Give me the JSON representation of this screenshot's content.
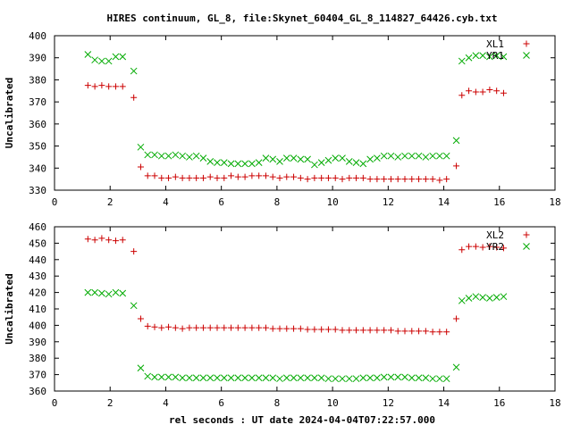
{
  "title": "HIRES continuum, GL_8, file:Skynet_60404_GL_8_114827_64426.cyb.txt",
  "xlabel": "rel seconds : UT date 2024-04-04T07:22:57.000",
  "chart_data": [
    {
      "type": "scatter",
      "ylabel": "Uncalibrated",
      "xlim": [
        0,
        18
      ],
      "ylim": [
        330,
        400
      ],
      "xticks": [
        0,
        2,
        4,
        6,
        8,
        10,
        12,
        14,
        16,
        18
      ],
      "yticks": [
        330,
        340,
        350,
        360,
        370,
        380,
        390,
        400
      ],
      "legend_position": "top-right",
      "series": [
        {
          "name": "XL1",
          "marker": "plus",
          "color": "#cc0000",
          "points": [
            [
              1.2,
              377.5
            ],
            [
              1.45,
              377
            ],
            [
              1.7,
              377.5
            ],
            [
              1.95,
              377
            ],
            [
              2.2,
              377
            ],
            [
              2.45,
              377
            ],
            [
              2.85,
              372
            ],
            [
              3.1,
              340.5
            ],
            [
              3.35,
              336.5
            ],
            [
              3.6,
              336.5
            ],
            [
              3.85,
              335.5
            ],
            [
              4.1,
              335.5
            ],
            [
              4.35,
              336
            ],
            [
              4.6,
              335.5
            ],
            [
              4.85,
              335.5
            ],
            [
              5.1,
              335.5
            ],
            [
              5.35,
              335.5
            ],
            [
              5.6,
              336
            ],
            [
              5.85,
              335.5
            ],
            [
              6.1,
              335.5
            ],
            [
              6.35,
              336.5
            ],
            [
              6.6,
              336
            ],
            [
              6.85,
              336
            ],
            [
              7.1,
              336.5
            ],
            [
              7.35,
              336.5
            ],
            [
              7.6,
              336.5
            ],
            [
              7.85,
              336
            ],
            [
              8.1,
              335.5
            ],
            [
              8.35,
              336
            ],
            [
              8.6,
              336
            ],
            [
              8.85,
              335.5
            ],
            [
              9.1,
              335
            ],
            [
              9.35,
              335.5
            ],
            [
              9.6,
              335.5
            ],
            [
              9.85,
              335.5
            ],
            [
              10.1,
              335.5
            ],
            [
              10.35,
              335
            ],
            [
              10.6,
              335.5
            ],
            [
              10.85,
              335.5
            ],
            [
              11.1,
              335.5
            ],
            [
              11.35,
              335
            ],
            [
              11.6,
              335
            ],
            [
              11.85,
              335
            ],
            [
              12.1,
              335
            ],
            [
              12.35,
              335
            ],
            [
              12.6,
              335
            ],
            [
              12.85,
              335
            ],
            [
              13.1,
              335
            ],
            [
              13.35,
              335
            ],
            [
              13.6,
              335
            ],
            [
              13.85,
              334.5
            ],
            [
              14.1,
              335
            ],
            [
              14.45,
              341
            ],
            [
              14.65,
              373
            ],
            [
              14.9,
              375
            ],
            [
              15.15,
              374.5
            ],
            [
              15.4,
              374.5
            ],
            [
              15.65,
              375.5
            ],
            [
              15.9,
              375
            ],
            [
              16.15,
              374
            ]
          ]
        },
        {
          "name": "YR1",
          "marker": "cross",
          "color": "#00aa00",
          "points": [
            [
              1.2,
              391.5
            ],
            [
              1.45,
              389
            ],
            [
              1.7,
              388.5
            ],
            [
              1.95,
              388.5
            ],
            [
              2.2,
              390.5
            ],
            [
              2.45,
              390.5
            ],
            [
              2.85,
              384
            ],
            [
              3.1,
              349.5
            ],
            [
              3.35,
              346
            ],
            [
              3.6,
              346
            ],
            [
              3.85,
              345.5
            ],
            [
              4.1,
              345.5
            ],
            [
              4.35,
              346
            ],
            [
              4.6,
              345.5
            ],
            [
              4.85,
              345
            ],
            [
              5.1,
              345.5
            ],
            [
              5.35,
              344.5
            ],
            [
              5.6,
              343
            ],
            [
              5.85,
              342.5
            ],
            [
              6.1,
              342.5
            ],
            [
              6.35,
              342
            ],
            [
              6.6,
              342
            ],
            [
              6.85,
              342
            ],
            [
              7.1,
              342
            ],
            [
              7.35,
              342.5
            ],
            [
              7.6,
              344.5
            ],
            [
              7.85,
              344
            ],
            [
              8.1,
              343
            ],
            [
              8.35,
              344.5
            ],
            [
              8.6,
              344.5
            ],
            [
              8.85,
              344
            ],
            [
              9.1,
              344
            ],
            [
              9.35,
              341.5
            ],
            [
              9.6,
              342.5
            ],
            [
              9.85,
              343.5
            ],
            [
              10.1,
              344.5
            ],
            [
              10.35,
              344.5
            ],
            [
              10.6,
              343
            ],
            [
              10.85,
              342.5
            ],
            [
              11.1,
              342
            ],
            [
              11.35,
              344
            ],
            [
              11.6,
              344.5
            ],
            [
              11.85,
              345.5
            ],
            [
              12.1,
              345.5
            ],
            [
              12.35,
              345
            ],
            [
              12.6,
              345.5
            ],
            [
              12.85,
              345.5
            ],
            [
              13.1,
              345.5
            ],
            [
              13.35,
              345
            ],
            [
              13.6,
              345.5
            ],
            [
              13.85,
              345.5
            ],
            [
              14.1,
              345.5
            ],
            [
              14.45,
              352.5
            ],
            [
              14.65,
              388.5
            ],
            [
              14.9,
              390
            ],
            [
              15.15,
              391
            ],
            [
              15.4,
              391
            ],
            [
              15.65,
              390.5
            ],
            [
              15.9,
              391
            ],
            [
              16.15,
              390.5
            ]
          ]
        }
      ]
    },
    {
      "type": "scatter",
      "ylabel": "Uncalibrated",
      "xlim": [
        0,
        18
      ],
      "ylim": [
        360,
        460
      ],
      "xticks": [
        0,
        2,
        4,
        6,
        8,
        10,
        12,
        14,
        16,
        18
      ],
      "yticks": [
        360,
        370,
        380,
        390,
        400,
        410,
        420,
        430,
        440,
        450,
        460
      ],
      "legend_position": "top-right",
      "series": [
        {
          "name": "XL2",
          "marker": "plus",
          "color": "#cc0000",
          "points": [
            [
              1.2,
              452.5
            ],
            [
              1.45,
              452
            ],
            [
              1.7,
              453
            ],
            [
              1.95,
              452
            ],
            [
              2.2,
              451.5
            ],
            [
              2.45,
              452
            ],
            [
              2.85,
              445
            ],
            [
              3.1,
              404
            ],
            [
              3.35,
              399.5
            ],
            [
              3.6,
              399
            ],
            [
              3.85,
              398.5
            ],
            [
              4.1,
              399
            ],
            [
              4.35,
              398.5
            ],
            [
              4.6,
              398
            ],
            [
              4.85,
              398.5
            ],
            [
              5.1,
              398.5
            ],
            [
              5.35,
              398.5
            ],
            [
              5.6,
              398.5
            ],
            [
              5.85,
              398.5
            ],
            [
              6.1,
              398.5
            ],
            [
              6.35,
              398.5
            ],
            [
              6.6,
              398.5
            ],
            [
              6.85,
              398.5
            ],
            [
              7.1,
              398.5
            ],
            [
              7.35,
              398.5
            ],
            [
              7.6,
              398.5
            ],
            [
              7.85,
              398
            ],
            [
              8.1,
              398
            ],
            [
              8.35,
              398
            ],
            [
              8.6,
              398
            ],
            [
              8.85,
              398
            ],
            [
              9.1,
              397.5
            ],
            [
              9.35,
              397.5
            ],
            [
              9.6,
              397.5
            ],
            [
              9.85,
              397.5
            ],
            [
              10.1,
              397.5
            ],
            [
              10.35,
              397
            ],
            [
              10.6,
              397
            ],
            [
              10.85,
              397
            ],
            [
              11.1,
              397
            ],
            [
              11.35,
              397
            ],
            [
              11.6,
              397
            ],
            [
              11.85,
              397
            ],
            [
              12.1,
              397
            ],
            [
              12.35,
              396.5
            ],
            [
              12.6,
              396.5
            ],
            [
              12.85,
              396.5
            ],
            [
              13.1,
              396.5
            ],
            [
              13.35,
              396.5
            ],
            [
              13.6,
              396
            ],
            [
              13.85,
              396
            ],
            [
              14.1,
              396
            ],
            [
              14.45,
              404
            ],
            [
              14.65,
              446
            ],
            [
              14.9,
              448
            ],
            [
              15.15,
              448
            ],
            [
              15.4,
              447.5
            ],
            [
              15.65,
              448
            ],
            [
              15.9,
              447.5
            ],
            [
              16.15,
              447
            ]
          ]
        },
        {
          "name": "YR2",
          "marker": "cross",
          "color": "#00aa00",
          "points": [
            [
              1.2,
              420
            ],
            [
              1.45,
              420
            ],
            [
              1.7,
              419.5
            ],
            [
              1.95,
              419
            ],
            [
              2.2,
              420
            ],
            [
              2.45,
              419.5
            ],
            [
              2.85,
              412
            ],
            [
              3.1,
              374
            ],
            [
              3.35,
              369
            ],
            [
              3.6,
              368.5
            ],
            [
              3.85,
              368.5
            ],
            [
              4.1,
              368.5
            ],
            [
              4.35,
              368.5
            ],
            [
              4.6,
              368
            ],
            [
              4.85,
              368
            ],
            [
              5.1,
              368
            ],
            [
              5.35,
              368
            ],
            [
              5.6,
              368
            ],
            [
              5.85,
              368
            ],
            [
              6.1,
              368
            ],
            [
              6.35,
              368
            ],
            [
              6.6,
              368
            ],
            [
              6.85,
              368
            ],
            [
              7.1,
              368
            ],
            [
              7.35,
              368
            ],
            [
              7.6,
              368
            ],
            [
              7.85,
              368
            ],
            [
              8.1,
              367.5
            ],
            [
              8.35,
              368
            ],
            [
              8.6,
              368
            ],
            [
              8.85,
              368
            ],
            [
              9.1,
              368
            ],
            [
              9.35,
              368
            ],
            [
              9.6,
              368
            ],
            [
              9.85,
              367.5
            ],
            [
              10.1,
              367.5
            ],
            [
              10.35,
              367.5
            ],
            [
              10.6,
              367.5
            ],
            [
              10.85,
              367.5
            ],
            [
              11.1,
              368
            ],
            [
              11.35,
              368
            ],
            [
              11.6,
              368
            ],
            [
              11.85,
              368.5
            ],
            [
              12.1,
              368.5
            ],
            [
              12.35,
              368.5
            ],
            [
              12.6,
              368.5
            ],
            [
              12.85,
              368
            ],
            [
              13.1,
              368
            ],
            [
              13.35,
              368
            ],
            [
              13.6,
              367.5
            ],
            [
              13.85,
              367.5
            ],
            [
              14.1,
              367.5
            ],
            [
              14.45,
              374.5
            ],
            [
              14.65,
              415
            ],
            [
              14.9,
              416.5
            ],
            [
              15.15,
              417.5
            ],
            [
              15.4,
              417
            ],
            [
              15.65,
              416.5
            ],
            [
              15.9,
              417
            ],
            [
              16.15,
              417.5
            ]
          ]
        }
      ]
    }
  ]
}
